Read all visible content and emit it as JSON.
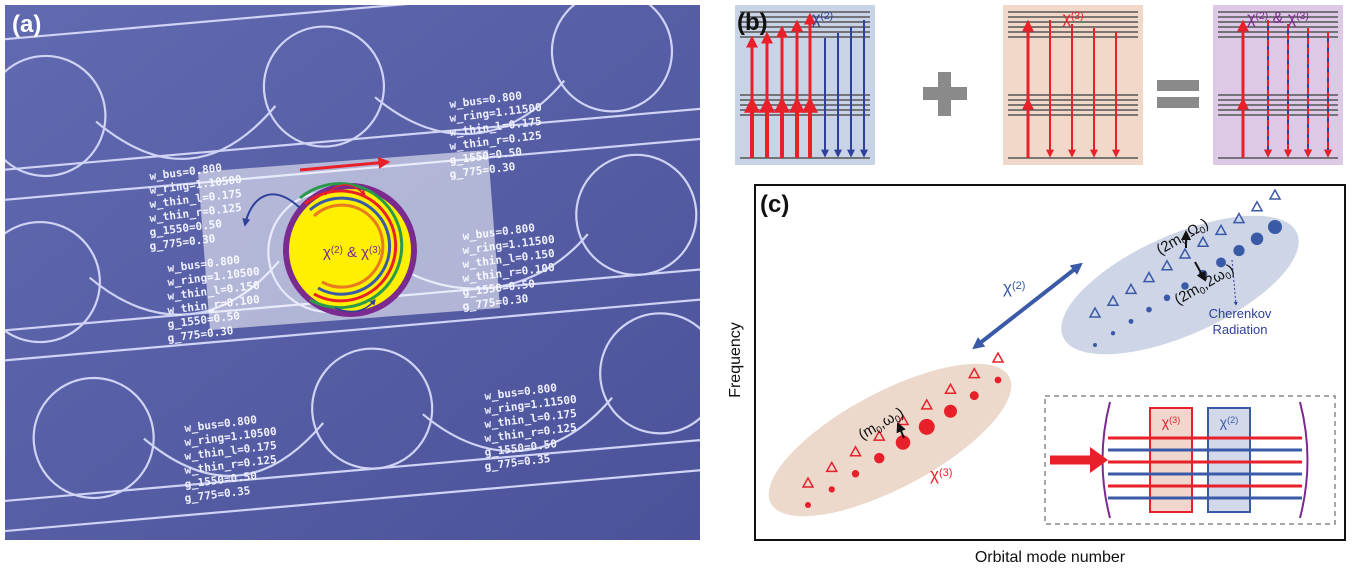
{
  "panel_a": {
    "label": "(a)",
    "chip_labels": [
      [
        "w_bus=0.800",
        "w_ring=1.10500",
        "w_thin_l=0.175",
        "w_thin_r=0.125",
        "g_1550=0.50",
        "g_775=0.30"
      ],
      [
        "w_bus=0.800",
        "w_ring=1.11500",
        "w_thin_l=0.175",
        "w_thin_r=0.125",
        "g_1550=0.50",
        "g_775=0.30"
      ],
      [
        "w_bus=0.800",
        "w_ring=1.10500",
        "w_thin_l=0.150",
        "w_thin_r=0.100",
        "g_1550=0.50",
        "g_775=0.30"
      ],
      [
        "w_bus=0.800",
        "w_ring=1.11500",
        "w_thin_l=0.150",
        "w_thin_r=0.100",
        "g_1550=0.50",
        "g_775=0.30"
      ],
      [
        "w_bus=0.800",
        "w_ring=1.10500",
        "w_thin_l=0.175",
        "w_thin_r=0.125",
        "g_1550=0.50",
        "g_775=0.35"
      ],
      [
        "w_bus=0.800",
        "w_ring=1.11500",
        "w_thin_l=0.175",
        "w_thin_r=0.125",
        "g_1550=0.50",
        "g_775=0.35"
      ]
    ],
    "ring_label": [
      "χ",
      {
        "sup": "(2)"
      },
      " & χ",
      {
        "sup": "(3)"
      }
    ]
  },
  "panel_b": {
    "label": "(b)",
    "chi2": [
      "χ",
      {
        "sup": "(2)"
      }
    ],
    "chi3": [
      "χ",
      {
        "sup": "(3)"
      }
    ],
    "combined": [
      "χ",
      {
        "sup": "(2)"
      },
      " & χ",
      {
        "sup": "(3)"
      }
    ]
  },
  "panel_c": {
    "label": "(c)",
    "x_label": "Orbital mode number",
    "y_label": "Frequency",
    "chi2_label": [
      "χ",
      {
        "sup": "(2)"
      }
    ],
    "chi3_label": [
      "χ",
      {
        "sup": "(3)"
      }
    ],
    "sh_mode_upper": [
      "(2m",
      {
        "sub": "0"
      },
      ",Ω",
      {
        "sub": "0"
      },
      ")"
    ],
    "sh_mode_lower": [
      "(2m",
      {
        "sub": "0"
      },
      ",2ω",
      {
        "sub": "0"
      },
      ")"
    ],
    "pump_mode": [
      "(m",
      {
        "sub": "0"
      },
      ",ω",
      {
        "sub": "0"
      },
      ")"
    ],
    "cherenkov": [
      "Cherenkov",
      "Radiation"
    ],
    "inset": {
      "chi3": [
        "χ",
        {
          "sup": "(3)"
        }
      ],
      "chi2": [
        "χ",
        {
          "sup": "(2)"
        }
      ]
    }
  }
}
